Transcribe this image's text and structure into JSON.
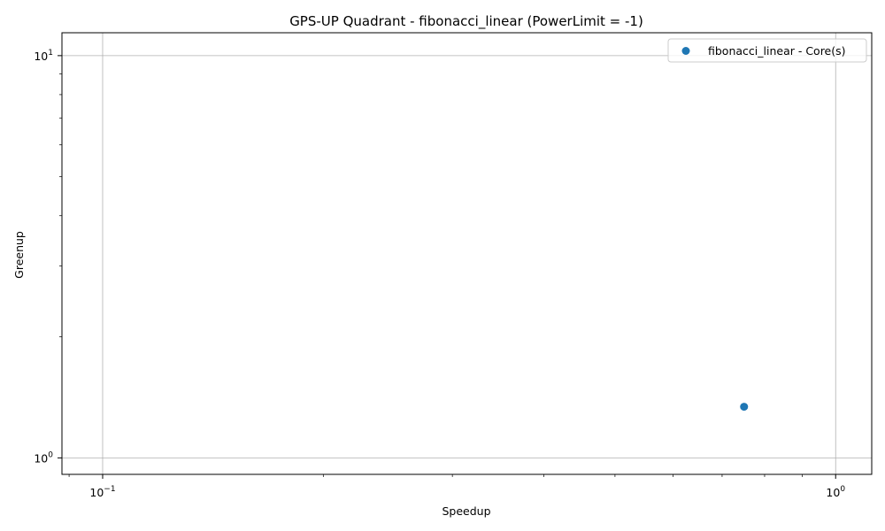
{
  "chart_data": {
    "type": "scatter",
    "title": "GPS-UP Quadrant - fibonacci_linear (PowerLimit = -1)",
    "xlabel": "Speedup",
    "ylabel": "Greenup",
    "xscale": "log",
    "yscale": "log",
    "xlim": [
      0.088,
      1.12
    ],
    "ylim": [
      0.91,
      11.4
    ],
    "grid": true,
    "legend_position": "top-right",
    "x_ticks": [
      {
        "value": 0.1,
        "base": "10",
        "exp": "−1"
      },
      {
        "value": 1,
        "base": "10",
        "exp": "0"
      }
    ],
    "y_ticks": [
      {
        "value": 1,
        "base": "10",
        "exp": "0"
      },
      {
        "value": 10,
        "base": "10",
        "exp": "1"
      }
    ],
    "series": [
      {
        "name": "fibonacci_linear - Core(s)",
        "color": "#1f77b4",
        "points": [
          {
            "x": 0.75,
            "y": 1.34
          }
        ]
      }
    ]
  }
}
